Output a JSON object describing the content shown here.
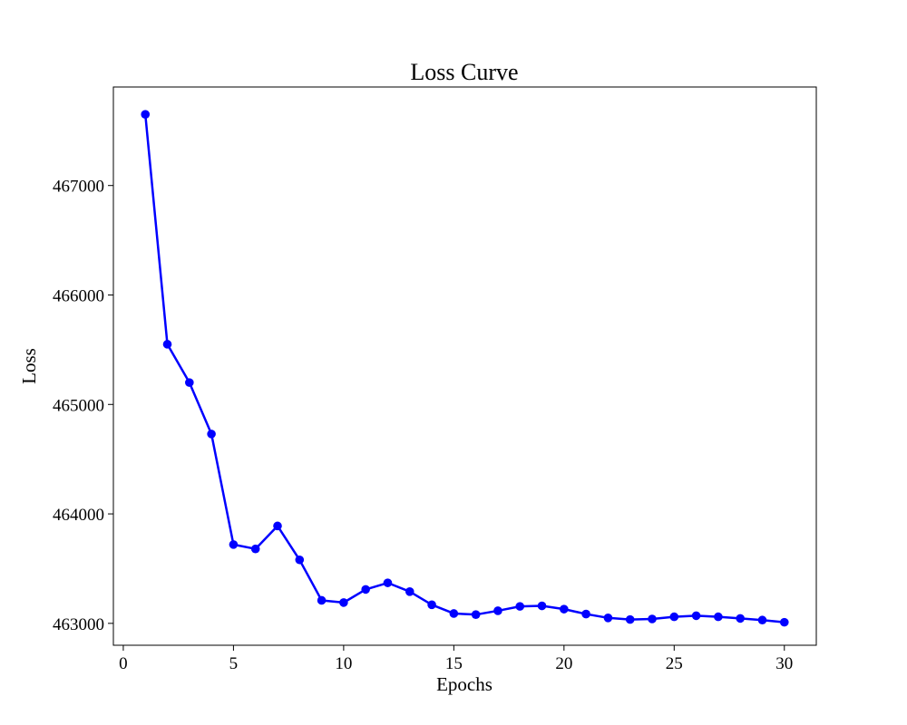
{
  "chart_data": {
    "type": "line",
    "title": "Loss Curve",
    "xlabel": "Epochs",
    "ylabel": "Loss",
    "xlim": [
      -0.45,
      31.45
    ],
    "ylim": [
      462800,
      467900
    ],
    "xticks": [
      0,
      5,
      10,
      15,
      20,
      25,
      30
    ],
    "yticks": [
      463000,
      464000,
      465000,
      466000,
      467000
    ],
    "grid": false,
    "series": [
      {
        "name": "Loss",
        "color": "#0000ff",
        "marker": "circle",
        "x": [
          1,
          2,
          3,
          4,
          5,
          6,
          7,
          8,
          9,
          10,
          11,
          12,
          13,
          14,
          15,
          16,
          17,
          18,
          19,
          20,
          21,
          22,
          23,
          24,
          25,
          26,
          27,
          28,
          29,
          30
        ],
        "values": [
          467650,
          465550,
          465200,
          464730,
          463720,
          463680,
          463890,
          463580,
          463210,
          463190,
          463310,
          463370,
          463290,
          463170,
          463090,
          463080,
          463115,
          463155,
          463160,
          463130,
          463085,
          463050,
          463035,
          463040,
          463060,
          463070,
          463060,
          463045,
          463030,
          463010
        ]
      }
    ]
  }
}
